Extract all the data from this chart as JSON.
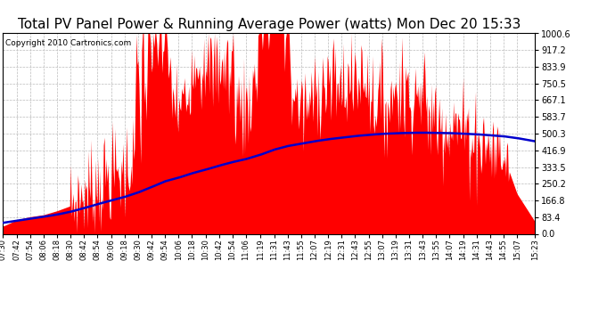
{
  "title": "Total PV Panel Power & Running Average Power (watts) Mon Dec 20 15:33",
  "copyright_text": "Copyright 2010 Cartronics.com",
  "y_max": 1000.6,
  "y_min": 0.0,
  "yticks": [
    0.0,
    83.4,
    166.8,
    250.2,
    333.5,
    416.9,
    500.3,
    583.7,
    667.1,
    750.5,
    833.9,
    917.2,
    1000.6
  ],
  "background_color": "#ffffff",
  "plot_bg_color": "#ffffff",
  "grid_color": "#bbbbbb",
  "fill_color": "#ff0000",
  "line_color": "#0000cc",
  "title_fontsize": 11,
  "copyright_fontsize": 6.5,
  "x_labels": [
    "07:30",
    "07:42",
    "07:54",
    "08:06",
    "08:18",
    "08:30",
    "08:42",
    "08:54",
    "09:06",
    "09:18",
    "09:30",
    "09:42",
    "09:54",
    "10:06",
    "10:18",
    "10:30",
    "10:42",
    "10:54",
    "11:06",
    "11:19",
    "11:31",
    "11:43",
    "11:55",
    "12:07",
    "12:19",
    "12:31",
    "12:43",
    "12:55",
    "13:07",
    "13:19",
    "13:31",
    "13:43",
    "13:55",
    "14:07",
    "14:19",
    "14:31",
    "14:43",
    "14:55",
    "15:07",
    "15:23"
  ],
  "pv_values_by_label": {
    "07:30": 55,
    "07:42": 70,
    "07:54": 85,
    "08:06": 95,
    "08:18": 115,
    "08:30": 140,
    "08:42": 200,
    "08:54": 250,
    "09:06": 290,
    "09:18": 310,
    "09:30": 450,
    "09:42": 700,
    "09:54": 850,
    "10:06": 600,
    "10:18": 750,
    "10:30": 680,
    "10:42": 720,
    "10:54": 680,
    "11:06": 620,
    "11:19": 850,
    "11:31": 980,
    "11:43": 750,
    "11:55": 620,
    "12:07": 650,
    "12:19": 660,
    "12:31": 640,
    "12:43": 700,
    "12:55": 680,
    "13:07": 660,
    "13:19": 640,
    "13:31": 620,
    "13:43": 600,
    "13:55": 580,
    "14:07": 560,
    "14:19": 520,
    "14:31": 480,
    "14:43": 430,
    "14:55": 390,
    "15:07": 200,
    "15:23": 60
  },
  "avg_values_by_label": {
    "07:30": 55,
    "07:42": 65,
    "07:54": 75,
    "08:06": 85,
    "08:18": 96,
    "08:30": 110,
    "08:42": 128,
    "08:54": 148,
    "09:06": 166,
    "09:18": 184,
    "09:30": 206,
    "09:42": 233,
    "09:54": 262,
    "10:06": 280,
    "10:18": 302,
    "10:30": 320,
    "10:42": 340,
    "10:54": 358,
    "11:06": 373,
    "11:19": 395,
    "11:31": 420,
    "11:43": 438,
    "11:55": 450,
    "12:07": 462,
    "12:19": 472,
    "12:31": 480,
    "12:43": 488,
    "12:55": 494,
    "13:07": 499,
    "13:19": 502,
    "13:31": 504,
    "13:43": 505,
    "13:55": 504,
    "14:07": 503,
    "14:19": 500,
    "14:31": 497,
    "14:43": 492,
    "14:55": 487,
    "15:07": 478,
    "15:23": 462
  }
}
